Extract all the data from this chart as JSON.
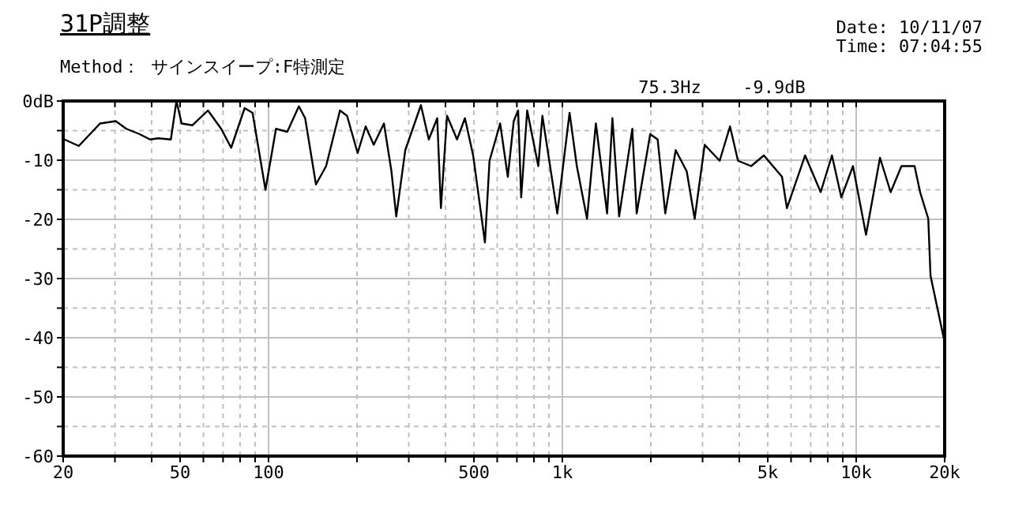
{
  "chart_data": {
    "type": "line",
    "title": "31P調整",
    "subtitle": "Method： サインスイープ:F特測定",
    "annotations": [
      "Date: 10/11/07",
      "Time: 07:04:55",
      "75.3Hz",
      "-9.9dB"
    ],
    "log": "x",
    "grid": true,
    "xlim": [
      20,
      20000
    ],
    "ylim": [
      -60,
      0
    ],
    "xticks": [
      20,
      {
        "value": 30,
        "label": null
      },
      {
        "value": 40,
        "label": null
      },
      50,
      {
        "value": 60,
        "label": null
      },
      {
        "value": 70,
        "label": null
      },
      {
        "value": 80,
        "label": null
      },
      {
        "value": 90,
        "label": null
      },
      100,
      {
        "value": 200,
        "label": null
      },
      {
        "value": 300,
        "label": null
      },
      {
        "value": 400,
        "label": null
      },
      500,
      {
        "value": 600,
        "label": null
      },
      {
        "value": 700,
        "label": null
      },
      {
        "value": 800,
        "label": null
      },
      {
        "value": 900,
        "label": null
      },
      {
        "value": 1000,
        "label": "1k"
      },
      {
        "value": 2000,
        "label": null
      },
      {
        "value": 3000,
        "label": null
      },
      {
        "value": 4000,
        "label": null
      },
      {
        "value": 5000,
        "label": "5k"
      },
      {
        "value": 6000,
        "label": null
      },
      {
        "value": 7000,
        "label": null
      },
      {
        "value": 8000,
        "label": null
      },
      {
        "value": 9000,
        "label": null
      },
      {
        "value": 10000,
        "label": "10k"
      },
      {
        "value": 20000,
        "label": "20k"
      }
    ],
    "yticks": [
      {
        "value": 0,
        "label": "0dB"
      },
      {
        "value": -5,
        "label": null
      },
      -10,
      {
        "value": -15,
        "label": null
      },
      -20,
      {
        "value": -25,
        "label": null
      },
      -30,
      {
        "value": -35,
        "label": null
      },
      -40,
      {
        "value": -45,
        "label": null
      },
      -50,
      {
        "value": -55,
        "label": null
      },
      -60
    ],
    "series": [
      {
        "color": "#000000",
        "x": [
          20.2,
          22.6,
          26.7,
          30.2,
          32.8,
          36.4,
          39.5,
          42.1,
          46.5,
          48.6,
          50.6,
          55,
          62.2,
          69,
          74.6,
          82.9,
          88.2,
          97.6,
          106,
          115.8,
          126.8,
          133.2,
          145,
          157,
          175,
          185,
          201,
          214,
          228,
          247,
          262,
          272,
          292,
          330,
          351,
          375,
          386,
          405,
          438,
          466,
          497,
          545,
          565,
          614,
          652,
          683,
          707,
          724,
          759,
          828,
          855,
          961,
          1058,
          1120,
          1213,
          1300,
          1420,
          1480,
          1560,
          1730,
          1790,
          1990,
          2110,
          2240,
          2430,
          2650,
          2820,
          3050,
          3430,
          3720,
          3960,
          4390,
          4850,
          5590,
          5810,
          6700,
          7570,
          8270,
          8900,
          9750,
          10800,
          12050,
          13100,
          14260,
          15800,
          16500,
          17590,
          17900,
          20000
        ],
        "values": [
          -6.5,
          -7.6,
          -3.8,
          -3.4,
          -4.7,
          -5.6,
          -6.5,
          -6.3,
          -6.5,
          0,
          -3.8,
          -4.1,
          -1.6,
          -4.7,
          -7.9,
          -1.2,
          -2,
          -15,
          -4.7,
          -5.2,
          -0.9,
          -2.9,
          -14.1,
          -11,
          -1.6,
          -2.5,
          -8.8,
          -4.3,
          -7.4,
          -3.8,
          -11.9,
          -19.5,
          -8.3,
          -0.7,
          -6.5,
          -2.9,
          -18.1,
          -2.5,
          -6.5,
          -2.9,
          -9.2,
          -23.9,
          -10.1,
          -3.8,
          -12.8,
          -3.4,
          -1.6,
          -16.3,
          -1.6,
          -11,
          -2.5,
          -19,
          -2,
          -11,
          -19.9,
          -3.8,
          -19,
          -2.9,
          -19.5,
          -4.7,
          -19,
          -5.6,
          -6.5,
          -19,
          -8.3,
          -11.9,
          -19.9,
          -7.4,
          -10.1,
          -4.3,
          -10.1,
          -11,
          -9.2,
          -12.8,
          -18.1,
          -9.2,
          -15.4,
          -9.2,
          -16.3,
          -11,
          -22.6,
          -9.6,
          -15.4,
          -11,
          -11,
          -15.4,
          -19.9,
          -29.5,
          -40.8
        ]
      }
    ]
  }
}
